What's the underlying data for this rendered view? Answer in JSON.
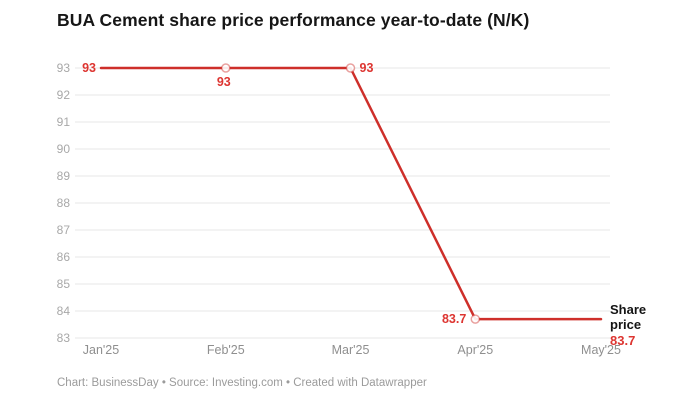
{
  "title": "BUA Cement share price performance year-to-date (N/K)",
  "footer": "Chart: BusinessDay • Source: Investing.com • Created with Datawrapper",
  "colors": {
    "line": "#ce2f2a",
    "value_label": "#dd3531",
    "marker_stroke": "#ce2f2a",
    "grid": "#e7e7e7",
    "ytick_text": "#a8a8a8",
    "xtick_text": "#8f8f8f",
    "title_text": "#161616",
    "footer_text": "#9b9b9b",
    "background": "#ffffff"
  },
  "chart_data": {
    "type": "line",
    "title": "BUA Cement share price performance year-to-date (N/K)",
    "categories": [
      "Jan'25",
      "Feb'25",
      "Mar'25",
      "Apr'25",
      "May'25"
    ],
    "series": [
      {
        "name": "Share price",
        "values": [
          93,
          93,
          93,
          83.7,
          83.7
        ]
      }
    ],
    "point_labels": [
      "93",
      "93",
      "93",
      "83.7",
      null
    ],
    "marker_indices": [
      1,
      2,
      3
    ],
    "end_label": {
      "name_lines": [
        "Share",
        "price"
      ],
      "value": "83.7"
    },
    "xlabel": "",
    "ylabel": "",
    "ylim": [
      83,
      93
    ],
    "yticks": [
      93,
      92,
      91,
      90,
      89,
      88,
      87,
      86,
      85,
      84,
      83
    ],
    "grid": "horizontal",
    "legend_position": "end-of-line"
  }
}
